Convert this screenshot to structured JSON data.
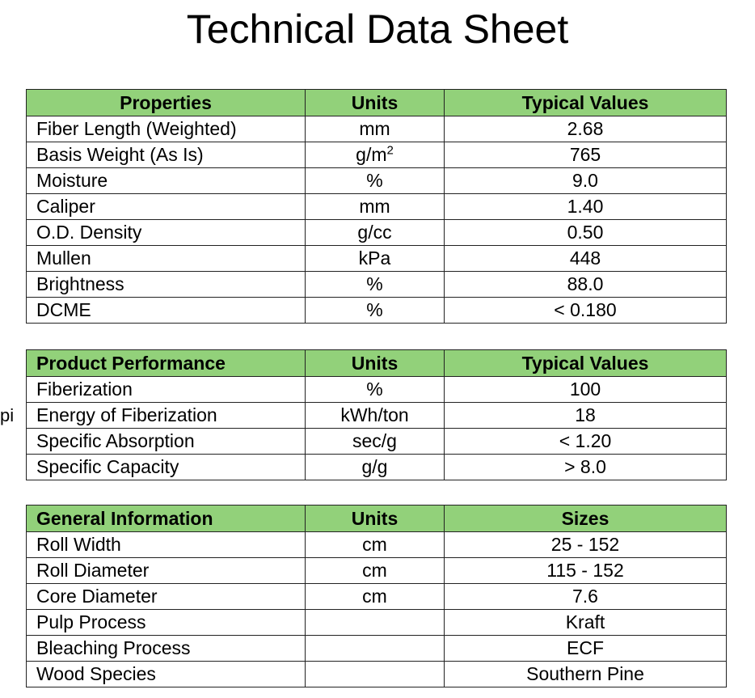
{
  "title": "Technical Data Sheet",
  "margin_fragment": "pi",
  "colors": {
    "header_bg": "#92d17a",
    "border": "#222222"
  },
  "properties_table": {
    "headers": [
      "Properties",
      "Units",
      "Typical Values"
    ],
    "rows": [
      {
        "property": "Fiber Length (Weighted)",
        "unit": "mm",
        "value": "2.68"
      },
      {
        "property": "Basis Weight (As Is)",
        "unit": "g/m",
        "unit_sup": "2",
        "value": "765"
      },
      {
        "property": "Moisture",
        "unit": "%",
        "value": "9.0"
      },
      {
        "property": "Caliper",
        "unit": "mm",
        "value": "1.40"
      },
      {
        "property": "O.D. Density",
        "unit": "g/cc",
        "value": "0.50"
      },
      {
        "property": "Mullen",
        "unit": "kPa",
        "value": "448"
      },
      {
        "property": "Brightness",
        "unit": "%",
        "value": "88.0"
      },
      {
        "property": "DCME",
        "unit": "%",
        "value": "< 0.180"
      }
    ]
  },
  "performance_table": {
    "headers": [
      "Product Performance",
      "Units",
      "Typical Values"
    ],
    "rows": [
      {
        "property": "Fiberization",
        "unit": "%",
        "value": "100"
      },
      {
        "property": "Energy of Fiberization",
        "unit": "kWh/ton",
        "value": "18"
      },
      {
        "property": "Specific Absorption",
        "unit": "sec/g",
        "value": "< 1.20"
      },
      {
        "property": "Specific Capacity",
        "unit": "g/g",
        "value": "> 8.0"
      }
    ]
  },
  "general_table": {
    "headers": [
      "General Information",
      "Units",
      "Sizes"
    ],
    "rows": [
      {
        "property": "Roll Width",
        "unit": "cm",
        "value": "25 - 152"
      },
      {
        "property": "Roll Diameter",
        "unit": "cm",
        "value": "115 - 152"
      },
      {
        "property": "Core Diameter",
        "unit": "cm",
        "value": "7.6"
      },
      {
        "property": "Pulp Process",
        "unit": "",
        "value": "Kraft"
      },
      {
        "property": "Bleaching Process",
        "unit": "",
        "value": "ECF"
      },
      {
        "property": "Wood Species",
        "unit": "",
        "value": "Southern Pine"
      }
    ]
  }
}
